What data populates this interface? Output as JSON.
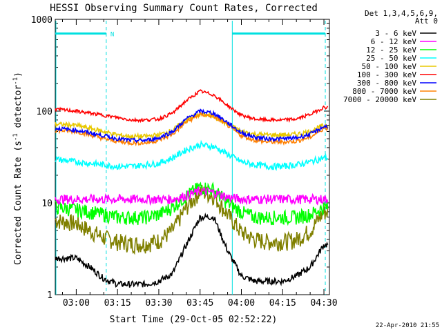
{
  "chart_data": {
    "type": "line",
    "title": "HESSI Observing Summary Count Rates, Corrected",
    "xlabel": "Start Time (29-Oct-05 02:52:22)",
    "ylabel_main": "Corrected Count Rate (s",
    "ylabel_sup1": "-1",
    "ylabel_mid": " detector",
    "ylabel_sup2": "-1",
    "ylabel_end": ")",
    "y_scale": "log",
    "ylim": [
      1,
      1000
    ],
    "xlim_minutes": [
      172.37,
      272.0
    ],
    "x_ticks": [
      {
        "label": "03:00",
        "minutes": 180
      },
      {
        "label": "03:15",
        "minutes": 195
      },
      {
        "label": "03:30",
        "minutes": 210
      },
      {
        "label": "03:45",
        "minutes": 225
      },
      {
        "label": "04:00",
        "minutes": 240
      },
      {
        "label": "04:15",
        "minutes": 255
      },
      {
        "label": "04:30",
        "minutes": 270
      }
    ],
    "y_ticks": [
      {
        "label": "1",
        "value": 1
      },
      {
        "label": "10",
        "value": 10
      },
      {
        "label": "100",
        "value": 100
      },
      {
        "label": "1000",
        "value": 1000
      }
    ],
    "legend_header": [
      "Det 1,3,4,5,6,9,",
      "Att 0"
    ],
    "legend_placement": "right",
    "night_marker": "N",
    "annotation_level": 700,
    "night_interval_minutes": [
      172.37,
      190.9
    ],
    "day_interval_minutes": [
      236.7,
      270.5
    ],
    "series": [
      {
        "name": "3 - 6 keV",
        "color": "#000000",
        "x": [
          172.4,
          180,
          185,
          190,
          195,
          200,
          205,
          210,
          215,
          220,
          225,
          230,
          235,
          240,
          245,
          250,
          255,
          260,
          265,
          270
        ],
        "values": [
          2.5,
          2.5,
          2.0,
          1.5,
          1.3,
          1.3,
          1.3,
          1.4,
          1.7,
          3.5,
          7.0,
          7.0,
          3.0,
          1.6,
          1.4,
          1.4,
          1.4,
          1.6,
          2.0,
          3.5
        ]
      },
      {
        "name": "6 - 12 keV",
        "color": "#ff00ff",
        "x": [
          172.4,
          180,
          185,
          190,
          195,
          200,
          205,
          210,
          215,
          220,
          225,
          230,
          235,
          240,
          245,
          250,
          255,
          260,
          265,
          270
        ],
        "values": [
          11,
          11,
          11,
          11,
          11,
          11,
          11,
          11,
          11,
          12,
          13.5,
          13,
          11.5,
          11,
          11,
          11,
          11,
          11,
          11,
          11
        ]
      },
      {
        "name": "12 - 25 keV",
        "color": "#00ff00",
        "x": [
          172.4,
          180,
          185,
          190,
          195,
          200,
          205,
          210,
          215,
          220,
          225,
          230,
          235,
          240,
          245,
          250,
          255,
          260,
          265,
          270
        ],
        "values": [
          9,
          8.5,
          8,
          7.5,
          7,
          7,
          7,
          7.5,
          9,
          12,
          15,
          14,
          10,
          8,
          7,
          7,
          7,
          7,
          7.5,
          9
        ]
      },
      {
        "name": "25 - 50 keV",
        "color": "#00ffff",
        "x": [
          172.4,
          180,
          185,
          190,
          195,
          200,
          205,
          210,
          215,
          220,
          225,
          230,
          235,
          240,
          245,
          250,
          255,
          260,
          265,
          270
        ],
        "values": [
          30,
          28,
          27,
          26,
          25,
          25,
          26,
          27,
          31,
          38,
          43,
          41,
          34,
          28,
          26,
          25,
          25,
          26,
          28,
          31
        ]
      },
      {
        "name": "50 - 100 keV",
        "color": "#e8c800",
        "x": [
          172.4,
          180,
          185,
          190,
          195,
          200,
          205,
          210,
          215,
          220,
          225,
          230,
          235,
          240,
          245,
          250,
          255,
          260,
          265,
          270
        ],
        "values": [
          72,
          70,
          65,
          60,
          55,
          53,
          53,
          55,
          62,
          80,
          92,
          88,
          72,
          60,
          56,
          55,
          55,
          56,
          60,
          70
        ]
      },
      {
        "name": "100 - 300 keV",
        "color": "#ff0000",
        "x": [
          172.4,
          180,
          185,
          190,
          195,
          200,
          205,
          210,
          215,
          220,
          225,
          230,
          235,
          240,
          245,
          250,
          255,
          260,
          265,
          270
        ],
        "values": [
          105,
          100,
          95,
          90,
          85,
          80,
          80,
          82,
          95,
          130,
          165,
          150,
          115,
          90,
          82,
          80,
          80,
          82,
          92,
          110
        ]
      },
      {
        "name": "300 - 800 keV",
        "color": "#0000ff",
        "x": [
          172.4,
          180,
          185,
          190,
          195,
          200,
          205,
          210,
          215,
          220,
          225,
          230,
          235,
          240,
          245,
          250,
          255,
          260,
          265,
          270
        ],
        "values": [
          65,
          62,
          58,
          54,
          50,
          48,
          48,
          51,
          60,
          82,
          100,
          95,
          75,
          58,
          52,
          50,
          50,
          51,
          56,
          68
        ]
      },
      {
        "name": "800 - 7000 keV",
        "color": "#ff8000",
        "x": [
          172.4,
          180,
          185,
          190,
          195,
          200,
          205,
          210,
          215,
          220,
          225,
          230,
          235,
          240,
          245,
          250,
          255,
          260,
          265,
          270
        ],
        "values": [
          62,
          60,
          55,
          50,
          47,
          45,
          45,
          48,
          56,
          76,
          92,
          88,
          70,
          54,
          48,
          46,
          46,
          47,
          52,
          65
        ]
      },
      {
        "name": "7000 - 20000 keV",
        "color": "#808000",
        "x": [
          172.4,
          180,
          185,
          190,
          195,
          200,
          205,
          210,
          215,
          220,
          225,
          230,
          235,
          240,
          245,
          250,
          255,
          260,
          265,
          270
        ],
        "values": [
          6.5,
          6.0,
          5.0,
          4.2,
          3.8,
          3.6,
          3.6,
          3.9,
          5.0,
          9.0,
          13.5,
          12,
          7.5,
          4.8,
          4.0,
          3.8,
          3.8,
          4.0,
          5.0,
          8.0
        ]
      }
    ]
  },
  "footer": {
    "date_stamp": "22-Apr-2010 21:55"
  }
}
